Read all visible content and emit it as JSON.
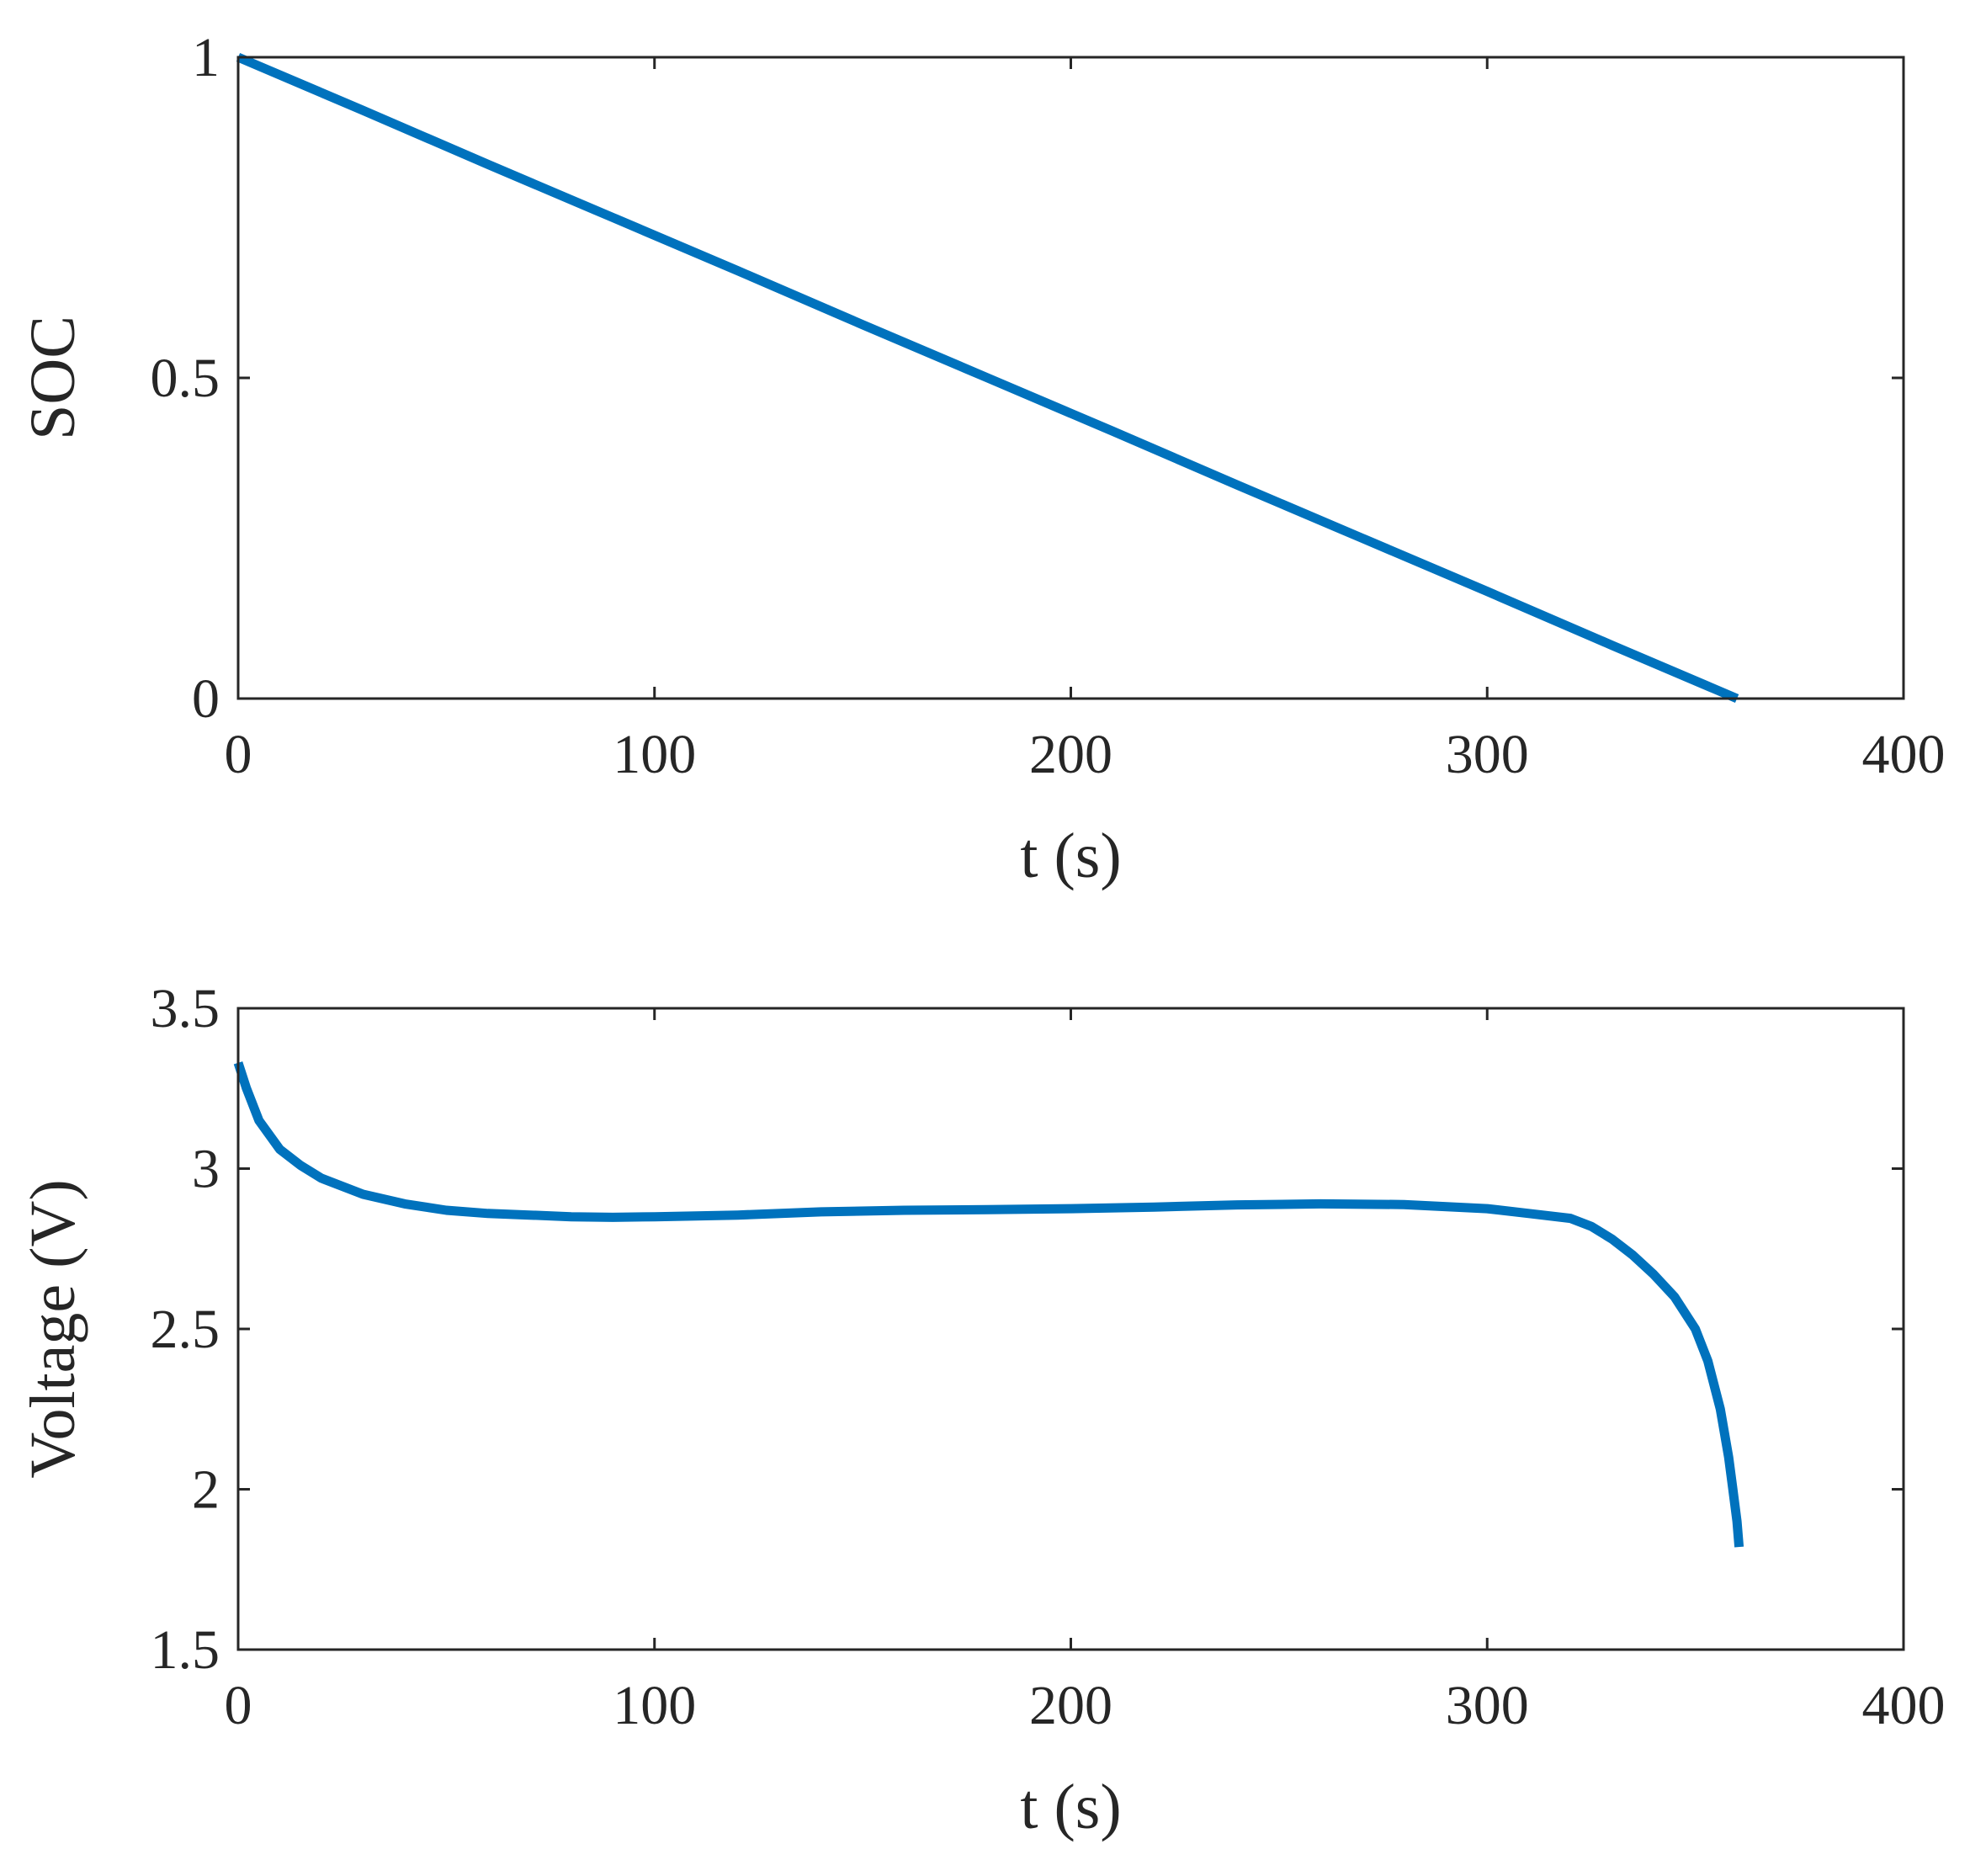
{
  "figure": {
    "line_color": "#0072BD",
    "axis_color": "#262626",
    "background": "#ffffff"
  },
  "chart_data": [
    {
      "type": "line",
      "title": "",
      "xlabel": "t (s)",
      "ylabel": "SOC",
      "xlim": [
        0,
        400
      ],
      "ylim": [
        0,
        1
      ],
      "xticks": [
        "0",
        "100",
        "200",
        "300",
        "400"
      ],
      "yticks": [
        "0",
        "0.5",
        "1"
      ],
      "xtick_values": [
        0,
        100,
        200,
        300,
        400
      ],
      "ytick_values": [
        0,
        0.5,
        1
      ],
      "grid": false,
      "series": [
        {
          "x": [
            0,
            30,
            60,
            90,
            120,
            150,
            180,
            210,
            240,
            270,
            300,
            330,
            360
          ],
          "y": [
            1.0,
            0.917,
            0.833,
            0.75,
            0.667,
            0.583,
            0.5,
            0.417,
            0.333,
            0.25,
            0.167,
            0.083,
            0.0
          ]
        }
      ]
    },
    {
      "type": "line",
      "title": "",
      "xlabel": "t (s)",
      "ylabel": "Voltage (V)",
      "xlim": [
        0,
        400
      ],
      "ylim": [
        1.5,
        3.5
      ],
      "xticks": [
        "0",
        "100",
        "200",
        "300",
        "400"
      ],
      "yticks": [
        "1.5",
        "2",
        "2.5",
        "3",
        "3.5"
      ],
      "xtick_values": [
        0,
        100,
        200,
        300,
        400
      ],
      "ytick_values": [
        1.5,
        2,
        2.5,
        3,
        3.5
      ],
      "grid": false,
      "series": [
        {
          "x": [
            0,
            2,
            5,
            10,
            15,
            20,
            30,
            40,
            50,
            60,
            70,
            80,
            90,
            100,
            120,
            140,
            160,
            180,
            200,
            220,
            240,
            260,
            280,
            300,
            310,
            320,
            325,
            330,
            335,
            340,
            345,
            350,
            353,
            356,
            358,
            359,
            360,
            360.5
          ],
          "y": [
            3.33,
            3.25,
            3.15,
            3.06,
            3.01,
            2.97,
            2.92,
            2.89,
            2.87,
            2.86,
            2.855,
            2.85,
            2.848,
            2.85,
            2.855,
            2.865,
            2.87,
            2.872,
            2.875,
            2.88,
            2.887,
            2.89,
            2.888,
            2.875,
            2.86,
            2.845,
            2.82,
            2.78,
            2.73,
            2.67,
            2.6,
            2.5,
            2.4,
            2.25,
            2.1,
            2.0,
            1.9,
            1.82
          ]
        }
      ]
    }
  ]
}
